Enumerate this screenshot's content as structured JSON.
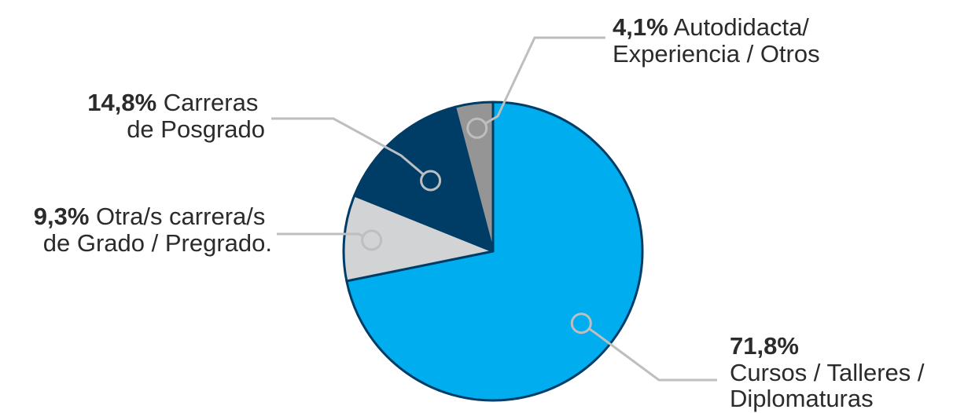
{
  "chart_data": {
    "type": "pie",
    "start": "12 o'clock",
    "direction": "clockwise",
    "slices": [
      {
        "percent_label": "71,8%",
        "value": 71.8,
        "label_lines": [
          "Cursos / Talleres /",
          "Diplomaturas"
        ],
        "color": "#00adef"
      },
      {
        "percent_label": "9,3%",
        "value": 9.3,
        "label_lines": [
          "Otra/s carrera/s",
          "de Grado / Pregrado."
        ],
        "color": "#d1d3d4"
      },
      {
        "percent_label": "14,8%",
        "value": 14.8,
        "label_lines": [
          "Carreras",
          "de Posgrado"
        ],
        "color": "#003d66"
      },
      {
        "percent_label": "4,1%",
        "value": 4.1,
        "label_lines": [
          "Autodidacta/",
          "Experiencia / Otros"
        ],
        "color": "#959595"
      }
    ],
    "outline_color": "#003d66",
    "leader_color": "#bcbec0"
  }
}
